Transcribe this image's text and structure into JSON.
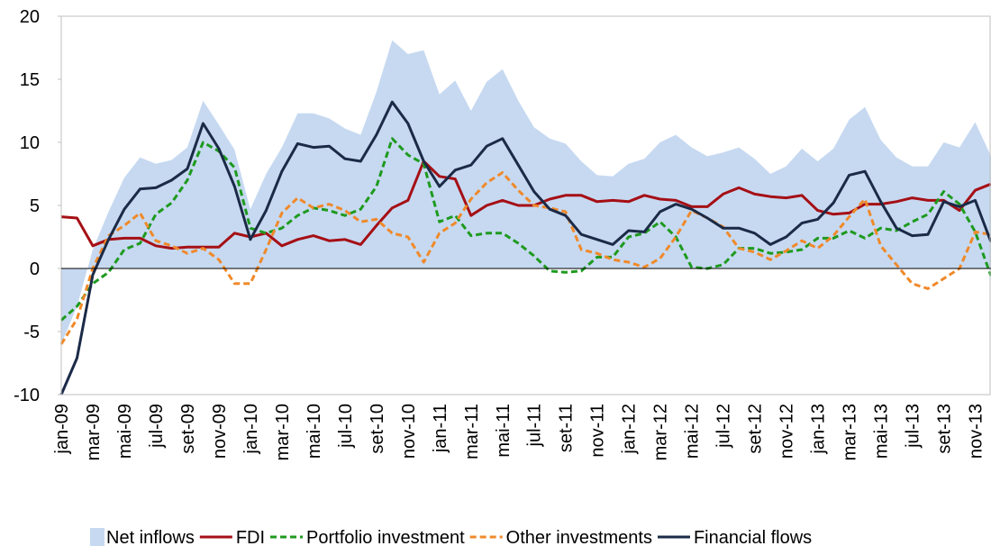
{
  "chart_data": {
    "type": "line",
    "categories": [
      "jan-09",
      null,
      "mar-09",
      null,
      "mai-09",
      null,
      "jul-09",
      null,
      "set-09",
      null,
      "nov-09",
      null,
      "jan-10",
      null,
      "mar-10",
      null,
      "mai-10",
      null,
      "jul-10",
      null,
      "set-10",
      null,
      "nov-10",
      null,
      "jan-11",
      null,
      "mar-11",
      null,
      "mai-11",
      null,
      "jul-11",
      null,
      "set-11",
      null,
      "nov-11",
      null,
      "jan-12",
      null,
      "mar-12",
      null,
      "mai-12",
      null,
      "jul-12",
      null,
      "set-12",
      null,
      "nov-12",
      null,
      "jan-13",
      null,
      "mar-13",
      null,
      "mai-13",
      null,
      "jul-13",
      null,
      "set-13",
      null,
      "nov-13",
      null
    ],
    "series": [
      {
        "name": "Net inflows",
        "color": "#c6d9f1",
        "kind": "area",
        "dash": false,
        "values": [
          -6,
          -3,
          1.5,
          4.5,
          7.2,
          8.8,
          8.3,
          8.6,
          9.6,
          13.3,
          11.4,
          9.4,
          4.7,
          7.5,
          9.6,
          12.3,
          12.3,
          11.9,
          11.1,
          10.6,
          14.0,
          18.1,
          17.0,
          17.3,
          13.8,
          14.9,
          12.5,
          14.8,
          15.8,
          13.3,
          11.2,
          10.3,
          9.9,
          8.5,
          7.4,
          7.3,
          8.3,
          8.7,
          10.0,
          10.6,
          9.6,
          8.9,
          9.2,
          9.6,
          8.7,
          7.5,
          8.1,
          9.5,
          8.5,
          9.5,
          11.8,
          12.8,
          10.2,
          8.8,
          8.1,
          8.1,
          10.0,
          9.6,
          11.6,
          8.9
        ]
      },
      {
        "name": "FDI",
        "color": "#a50f15",
        "kind": "line",
        "dash": false,
        "values": [
          4.1,
          4.0,
          1.8,
          2.3,
          2.4,
          2.4,
          1.8,
          1.6,
          1.7,
          1.7,
          1.7,
          2.8,
          2.5,
          2.8,
          1.8,
          2.3,
          2.6,
          2.2,
          2.3,
          1.9,
          3.4,
          4.8,
          5.4,
          8.5,
          7.3,
          7.1,
          4.2,
          5.0,
          5.4,
          5.0,
          5.0,
          5.5,
          5.8,
          5.8,
          5.3,
          5.4,
          5.3,
          5.8,
          5.5,
          5.4,
          4.9,
          4.9,
          5.9,
          6.4,
          5.9,
          5.7,
          5.6,
          5.8,
          4.6,
          4.3,
          4.4,
          5.1,
          5.1,
          5.3,
          5.6,
          5.4,
          5.4,
          4.6,
          6.2,
          6.7
        ]
      },
      {
        "name": "Portfolio investment",
        "color": "#1e9a1e",
        "kind": "line",
        "dash": true,
        "values": [
          -4.1,
          -3.0,
          -1.2,
          -0.3,
          1.5,
          2.0,
          4.3,
          5.2,
          7.0,
          10.0,
          9.3,
          8.0,
          3.2,
          2.8,
          3.2,
          4.2,
          4.8,
          4.6,
          4.2,
          4.7,
          6.5,
          10.3,
          9.0,
          8.3,
          3.7,
          4.2,
          2.6,
          2.8,
          2.8,
          2.0,
          1.0,
          -0.2,
          -0.3,
          -0.2,
          0.9,
          0.9,
          2.5,
          2.8,
          3.7,
          2.5,
          0.1,
          0.0,
          0.3,
          1.6,
          1.6,
          1.2,
          1.3,
          1.5,
          2.4,
          2.4,
          3.0,
          2.4,
          3.2,
          3.0,
          3.7,
          4.3,
          6.1,
          5.1,
          2.9,
          -0.6
        ]
      },
      {
        "name": "Other investments",
        "color": "#f0892a",
        "kind": "line",
        "dash": true,
        "values": [
          -6.0,
          -4.0,
          0.0,
          2.6,
          3.4,
          4.4,
          2.2,
          1.8,
          1.2,
          1.6,
          0.7,
          -1.2,
          -1.2,
          1.5,
          4.4,
          5.6,
          4.8,
          5.1,
          4.6,
          3.7,
          3.9,
          2.8,
          2.5,
          0.5,
          2.8,
          3.6,
          5.5,
          6.8,
          7.6,
          6.2,
          5.0,
          4.8,
          4.5,
          1.5,
          1.2,
          0.7,
          0.5,
          0.1,
          0.8,
          2.5,
          4.6,
          4.0,
          3.3,
          1.6,
          1.3,
          0.7,
          1.4,
          2.2,
          1.6,
          2.6,
          4.1,
          5.5,
          1.8,
          0.3,
          -1.2,
          -1.6,
          -0.8,
          0.0,
          2.9,
          2.7
        ]
      },
      {
        "name": "Financial flows",
        "color": "#1b2a47",
        "kind": "line",
        "dash": false,
        "values": [
          -10.0,
          -7.1,
          -0.5,
          2.3,
          4.7,
          6.3,
          6.4,
          7.0,
          7.9,
          11.5,
          9.5,
          6.5,
          2.3,
          4.6,
          7.7,
          9.9,
          9.6,
          9.7,
          8.7,
          8.5,
          10.6,
          13.2,
          11.5,
          8.5,
          6.5,
          7.8,
          8.2,
          9.7,
          10.3,
          8.2,
          6.1,
          4.7,
          4.2,
          2.7,
          2.3,
          1.9,
          3.0,
          2.9,
          4.5,
          5.1,
          4.7,
          4.0,
          3.2,
          3.2,
          2.8,
          1.9,
          2.5,
          3.6,
          3.9,
          5.2,
          7.4,
          7.7,
          5.3,
          3.2,
          2.6,
          2.7,
          5.3,
          4.9,
          5.4,
          2.1
        ]
      }
    ],
    "ylim": [
      -10,
      20
    ],
    "yticks": [
      -10,
      -5,
      0,
      5,
      10,
      15,
      20
    ],
    "grid": false,
    "legend": "bottom"
  }
}
